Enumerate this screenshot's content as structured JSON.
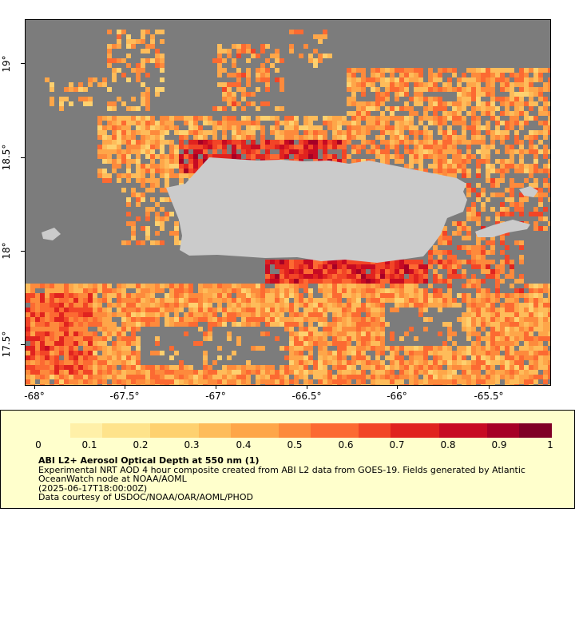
{
  "map": {
    "x_ticks": [
      "-68°",
      "-67.5°",
      "-67°",
      "-66.5°",
      "-66°",
      "-65.5°"
    ],
    "y_ticks": [
      "19°",
      "18.5°",
      "18°",
      "17.5°"
    ],
    "x_range": [
      -68.05,
      -65.2
    ],
    "y_range": [
      17.25,
      19.25
    ],
    "colors": {
      "land": "#cbcbcb",
      "no_data": "#7c7c7c"
    }
  },
  "legend": {
    "colorbar_ticks": [
      "0",
      "0.1",
      "0.2",
      "0.3",
      "0.4",
      "0.5",
      "0.6",
      "0.7",
      "0.8",
      "0.9",
      "1"
    ],
    "colorbar_colors": [
      "#ffffcc",
      "#fff0a8",
      "#fee38b",
      "#fed16f",
      "#febc5a",
      "#fea649",
      "#fd8a3c",
      "#fc6a32",
      "#f24527",
      "#e0231f",
      "#c70b23",
      "#a60026",
      "#800026"
    ],
    "title": "ABI L2+ Aerosol Optical Depth at 550 nm (1)",
    "desc1": "Experimental NRT AOD 4 hour composite created from ABI L2 data from GOES-19. Fields generated by Atlantic OceanWatch node at NOAA/AOML",
    "desc2": "(2025-06-17T18:00:00Z)",
    "desc3": "Data courtesy of USDOC/NOAA/OAR/AOML/PHOD"
  }
}
